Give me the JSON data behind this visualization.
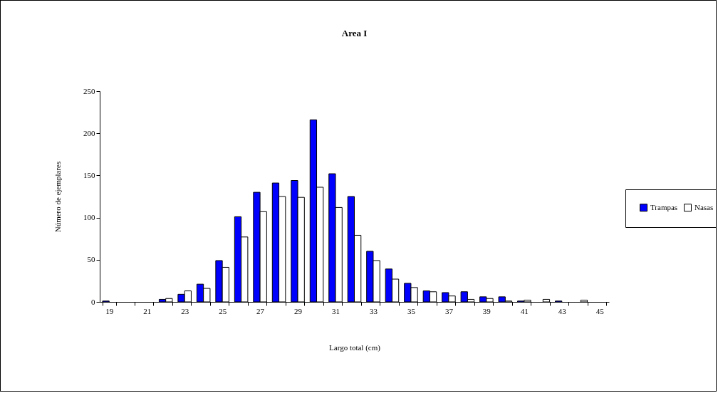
{
  "chart_data": {
    "type": "bar",
    "title": "Area I",
    "xlabel": "Largo total (cm)",
    "ylabel": "Número de ejemplares",
    "categories": [
      "19",
      null,
      "21",
      null,
      "23",
      null,
      "25",
      null,
      "27",
      null,
      "29",
      null,
      "31",
      null,
      "33",
      null,
      "35",
      null,
      "37",
      null,
      "39",
      null,
      "41",
      null,
      "43",
      null,
      "45"
    ],
    "series": [
      {
        "name": "Trampas",
        "color": "#0000ff",
        "values": [
          1,
          0,
          0,
          3,
          9,
          21,
          49,
          101,
          130,
          141,
          144,
          216,
          152,
          125,
          60,
          39,
          22,
          13,
          11,
          12,
          6,
          6,
          1,
          0,
          1,
          0,
          0
        ]
      },
      {
        "name": "Nasas",
        "color": "#ffffff",
        "values": [
          0,
          0,
          0,
          4,
          13,
          16,
          41,
          77,
          107,
          125,
          124,
          136,
          112,
          79,
          49,
          27,
          17,
          12,
          7,
          3,
          4,
          1,
          2,
          3,
          0,
          2,
          0
        ]
      }
    ],
    "ylim": [
      0,
      250
    ],
    "yticks": [
      0,
      50,
      100,
      150,
      200,
      250
    ],
    "grid": false,
    "legend": "right"
  }
}
